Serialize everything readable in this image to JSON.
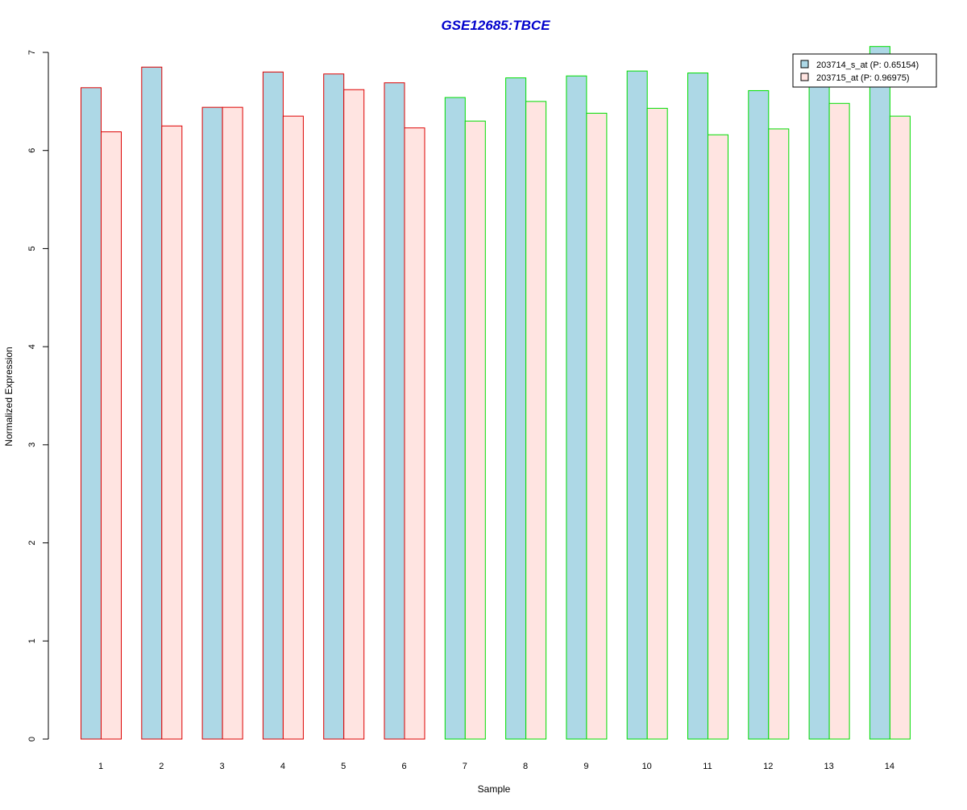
{
  "chart_data": {
    "type": "bar",
    "title": "GSE12685:TBCE",
    "xlabel": "Sample",
    "ylabel": "Normalized Expression",
    "ylim": [
      0,
      7
    ],
    "yticks": [
      0,
      1,
      2,
      3,
      4,
      5,
      6,
      7
    ],
    "grid": false,
    "legend_position": "top-right",
    "categories": [
      "1",
      "2",
      "3",
      "4",
      "5",
      "6",
      "7",
      "8",
      "9",
      "10",
      "11",
      "12",
      "13",
      "14"
    ],
    "sample_group_colors": [
      "#dd0000",
      "#dd0000",
      "#dd0000",
      "#dd0000",
      "#dd0000",
      "#dd0000",
      "#00dd00",
      "#00dd00",
      "#00dd00",
      "#00dd00",
      "#00dd00",
      "#00dd00",
      "#00dd00",
      "#00dd00"
    ],
    "series": [
      {
        "name": "203714_s_at (P: 0.65154)",
        "fill": "#add8e6",
        "values": [
          6.64,
          6.85,
          6.44,
          6.8,
          6.78,
          6.69,
          6.54,
          6.74,
          6.76,
          6.81,
          6.79,
          6.61,
          6.8,
          7.06
        ]
      },
      {
        "name": "203715_at (P: 0.96975)",
        "fill": "#ffe4e1",
        "values": [
          6.19,
          6.25,
          6.44,
          6.35,
          6.62,
          6.23,
          6.3,
          6.5,
          6.38,
          6.43,
          6.16,
          6.22,
          6.48,
          6.35
        ]
      }
    ],
    "colors": {
      "title": "#0000cc",
      "axis": "#000000"
    }
  }
}
